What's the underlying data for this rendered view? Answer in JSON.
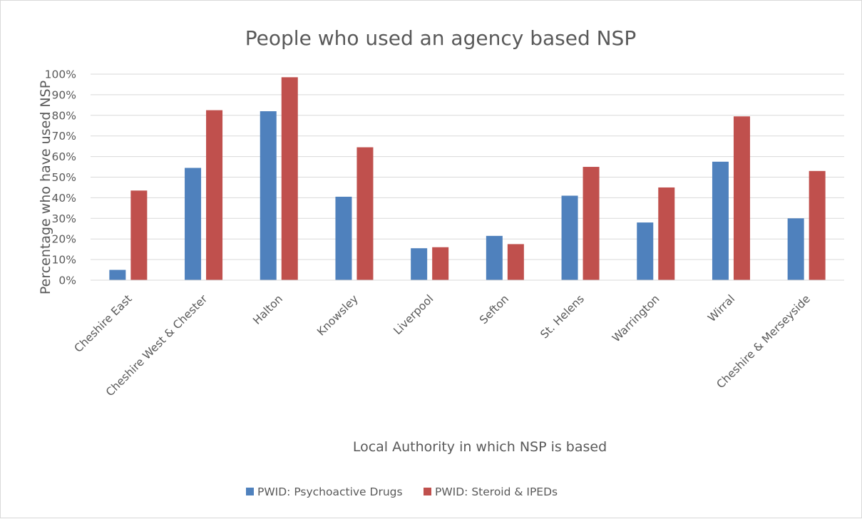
{
  "chart_data": {
    "type": "bar",
    "title": "People who used an agency based NSP",
    "xlabel": "Local Authority in which NSP is based",
    "ylabel": "Percentage who have used NSP",
    "categories": [
      "Cheshire East",
      "Cheshire West & Chester",
      "Halton",
      "Knowsley",
      "Liverpool",
      "Sefton",
      "St. Helens",
      "Warrington",
      "Wirral",
      "Cheshire & Merseyside"
    ],
    "series": [
      {
        "name": "PWID: Psychoactive Drugs",
        "color": "#4f81bd",
        "values": [
          5,
          54.5,
          82,
          40.5,
          15.5,
          21.5,
          41,
          28,
          57.5,
          30
        ]
      },
      {
        "name": "PWID: Steroid & IPEDs",
        "color": "#c0504d",
        "values": [
          43.5,
          82.5,
          98.5,
          64.5,
          16,
          17.5,
          55,
          45,
          79.5,
          53
        ]
      }
    ],
    "ylim": [
      0,
      100
    ],
    "yticks": [
      "0%",
      "10%",
      "20%",
      "30%",
      "40%",
      "50%",
      "60%",
      "70%",
      "80%",
      "90%",
      "100%"
    ],
    "grid": true,
    "legend_position": "bottom",
    "gridline_color": "#d9d9d9"
  }
}
